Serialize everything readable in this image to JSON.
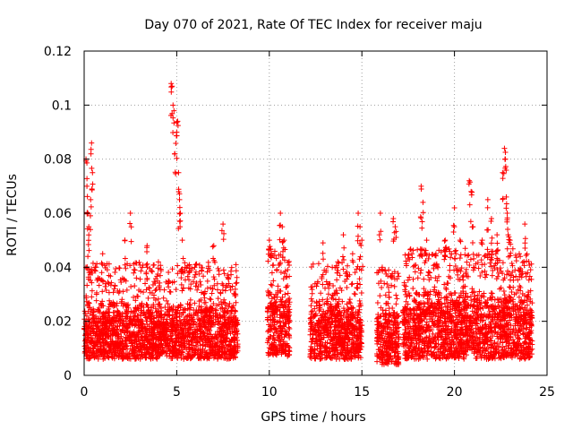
{
  "chart_data": {
    "type": "scatter",
    "title": "Day 070 of 2021, Rate Of TEC Index for receiver maju",
    "xlabel": "GPS time / hours",
    "ylabel": "ROTI / TECUs",
    "xlim": [
      0,
      25
    ],
    "ylim": [
      0,
      0.12
    ],
    "xticks": [
      "0",
      "5",
      "10",
      "15",
      "20",
      "25"
    ],
    "yticks": [
      "0",
      "0.02",
      "0.04",
      "0.06",
      "0.08",
      "0.1",
      "0.12"
    ],
    "grid": true,
    "marker": "+",
    "series_color": "#ff0000",
    "data_segments": [
      {
        "x_start": 0.0,
        "x_end": 8.3,
        "typical_low": 0.006,
        "typical_high": 0.03
      },
      {
        "x_start": 9.9,
        "x_end": 11.1,
        "typical_low": 0.007,
        "typical_high": 0.035
      },
      {
        "x_start": 12.2,
        "x_end": 15.0,
        "typical_low": 0.006,
        "typical_high": 0.03
      },
      {
        "x_start": 15.8,
        "x_end": 17.0,
        "typical_low": 0.004,
        "typical_high": 0.028
      },
      {
        "x_start": 17.2,
        "x_end": 24.2,
        "typical_low": 0.006,
        "typical_high": 0.035
      }
    ],
    "peaks": [
      {
        "x": 0.1,
        "y": 0.08
      },
      {
        "x": 0.15,
        "y": 0.07
      },
      {
        "x": 0.2,
        "y": 0.06
      },
      {
        "x": 0.25,
        "y": 0.055
      },
      {
        "x": 0.35,
        "y": 0.065
      },
      {
        "x": 0.4,
        "y": 0.086
      },
      {
        "x": 0.45,
        "y": 0.075
      },
      {
        "x": 1.0,
        "y": 0.045
      },
      {
        "x": 2.5,
        "y": 0.06
      },
      {
        "x": 2.2,
        "y": 0.05
      },
      {
        "x": 3.4,
        "y": 0.048
      },
      {
        "x": 4.7,
        "y": 0.108
      },
      {
        "x": 4.75,
        "y": 0.107
      },
      {
        "x": 4.8,
        "y": 0.1
      },
      {
        "x": 4.9,
        "y": 0.082
      },
      {
        "x": 5.0,
        "y": 0.09
      },
      {
        "x": 5.05,
        "y": 0.094
      },
      {
        "x": 5.1,
        "y": 0.075
      },
      {
        "x": 5.15,
        "y": 0.065
      },
      {
        "x": 5.2,
        "y": 0.06
      },
      {
        "x": 5.3,
        "y": 0.05
      },
      {
        "x": 7.5,
        "y": 0.056
      },
      {
        "x": 7.0,
        "y": 0.048
      },
      {
        "x": 8.2,
        "y": 0.041
      },
      {
        "x": 10.0,
        "y": 0.05
      },
      {
        "x": 10.1,
        "y": 0.044
      },
      {
        "x": 10.6,
        "y": 0.06
      },
      {
        "x": 10.7,
        "y": 0.055
      },
      {
        "x": 10.8,
        "y": 0.05
      },
      {
        "x": 12.9,
        "y": 0.049
      },
      {
        "x": 13.4,
        "y": 0.04
      },
      {
        "x": 13.7,
        "y": 0.042
      },
      {
        "x": 14.0,
        "y": 0.052
      },
      {
        "x": 14.5,
        "y": 0.045
      },
      {
        "x": 14.8,
        "y": 0.06
      },
      {
        "x": 14.9,
        "y": 0.055
      },
      {
        "x": 15.0,
        "y": 0.05
      },
      {
        "x": 16.0,
        "y": 0.06
      },
      {
        "x": 16.1,
        "y": 0.04
      },
      {
        "x": 16.7,
        "y": 0.058
      },
      {
        "x": 16.8,
        "y": 0.055
      },
      {
        "x": 18.2,
        "y": 0.07
      },
      {
        "x": 18.3,
        "y": 0.064
      },
      {
        "x": 18.5,
        "y": 0.05
      },
      {
        "x": 19.0,
        "y": 0.045
      },
      {
        "x": 19.5,
        "y": 0.05
      },
      {
        "x": 20.0,
        "y": 0.062
      },
      {
        "x": 20.3,
        "y": 0.05
      },
      {
        "x": 20.8,
        "y": 0.072
      },
      {
        "x": 20.9,
        "y": 0.068
      },
      {
        "x": 21.0,
        "y": 0.055
      },
      {
        "x": 21.5,
        "y": 0.05
      },
      {
        "x": 21.8,
        "y": 0.065
      },
      {
        "x": 22.0,
        "y": 0.058
      },
      {
        "x": 22.3,
        "y": 0.052
      },
      {
        "x": 22.6,
        "y": 0.075
      },
      {
        "x": 22.7,
        "y": 0.084
      },
      {
        "x": 22.75,
        "y": 0.08
      },
      {
        "x": 22.8,
        "y": 0.066
      },
      {
        "x": 22.85,
        "y": 0.06
      },
      {
        "x": 22.9,
        "y": 0.052
      },
      {
        "x": 23.0,
        "y": 0.05
      },
      {
        "x": 23.5,
        "y": 0.045
      },
      {
        "x": 23.8,
        "y": 0.056
      }
    ]
  }
}
